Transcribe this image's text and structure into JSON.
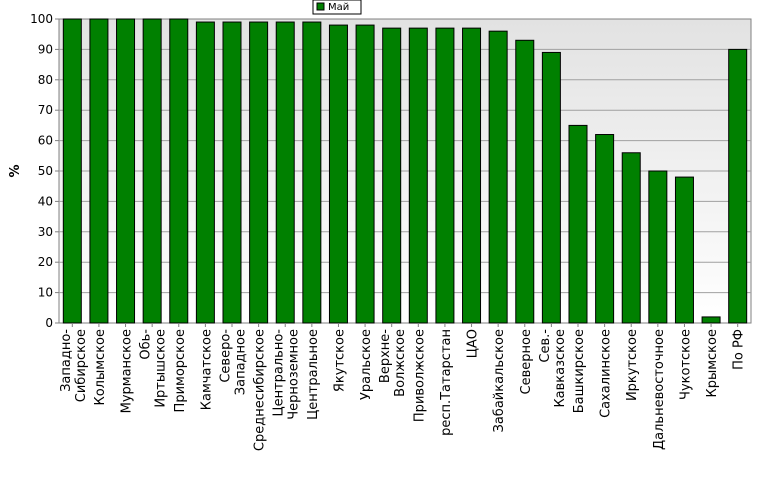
{
  "chart_data": {
    "type": "bar",
    "ylabel": "%",
    "ylim": [
      0,
      100
    ],
    "yticks": [
      0,
      10,
      20,
      30,
      40,
      50,
      60,
      70,
      80,
      90,
      100
    ],
    "grid": true,
    "legend_position": "top-center",
    "categories": [
      "Западно-Сибирское",
      "Колымское",
      "Мурманское",
      "Обь-Иртышское",
      "Приморское",
      "Камчатское",
      "Северо-Западное",
      "Среднесибирское",
      "Центрально-Черноземное",
      "Центральное",
      "Якутское",
      "Уральское",
      "Верхне-Волжское",
      "Приволжское",
      "респ.Татарстан",
      "ЦАО",
      "Забайкальское",
      "Северное",
      "Сев.-Кавказское",
      "Башкирское",
      "Сахалинское",
      "Иркутское",
      "Дальневосточное",
      "Чукотское",
      "Крымское",
      "По РФ"
    ],
    "category_lines": [
      [
        "Западно-",
        "Сибирское"
      ],
      [
        "Колымское"
      ],
      [
        "Мурманское"
      ],
      [
        "Обь-",
        "Иртышское"
      ],
      [
        "Приморское"
      ],
      [
        "Камчатское"
      ],
      [
        "Северо-",
        "Западное"
      ],
      [
        "Среднесибирское"
      ],
      [
        "Центрально-",
        "Черноземное"
      ],
      [
        "Центральное"
      ],
      [
        "Якутское"
      ],
      [
        "Уральское"
      ],
      [
        "Верхне-",
        "Волжское"
      ],
      [
        "Приволжское"
      ],
      [
        "респ.Татарстан"
      ],
      [
        "ЦАО"
      ],
      [
        "Забайкальское"
      ],
      [
        "Северное"
      ],
      [
        "Сев.-",
        "Кавказское"
      ],
      [
        "Башкирское"
      ],
      [
        "Сахалинское"
      ],
      [
        "Иркутское"
      ],
      [
        "Дальневосточное"
      ],
      [
        "Чукотское"
      ],
      [
        "Крымское"
      ],
      [
        "По РФ"
      ]
    ],
    "series": [
      {
        "name": "Май",
        "color": "#008000",
        "values": [
          100,
          100,
          100,
          100,
          100,
          99,
          99,
          99,
          99,
          99,
          98,
          98,
          97,
          97,
          97,
          97,
          96,
          93,
          89,
          65,
          62,
          56,
          50,
          48,
          2,
          90
        ]
      }
    ]
  }
}
